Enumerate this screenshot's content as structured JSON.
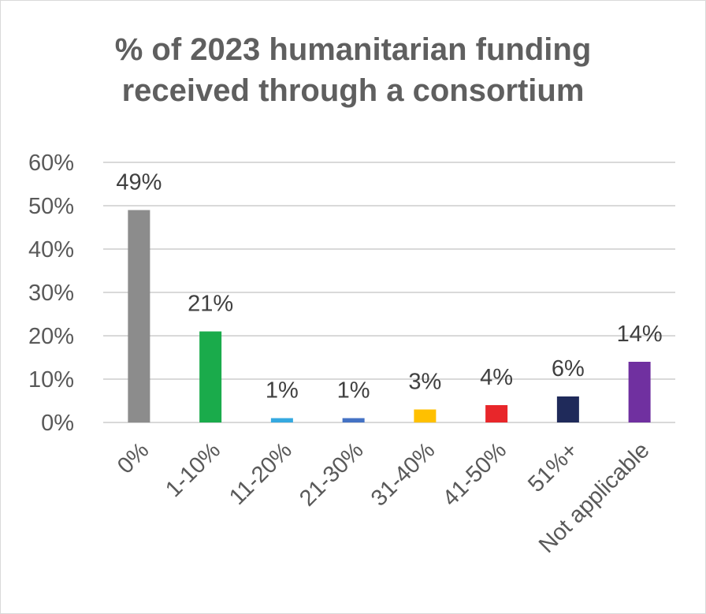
{
  "chart_data": {
    "type": "bar",
    "title_lines": [
      "% of 2023 humanitarian funding",
      "received through a consortium"
    ],
    "categories": [
      "0%",
      "1-10%",
      "11-20%",
      "21-30%",
      "31-40%",
      "41-50%",
      "51%+",
      "Not applicable"
    ],
    "values": [
      49,
      21,
      1,
      1,
      3,
      4,
      6,
      14
    ],
    "data_labels": [
      "49%",
      "21%",
      "1%",
      "1%",
      "3%",
      "4%",
      "6%",
      "14%"
    ],
    "bar_colors": [
      "#8c8c8c",
      "#1aab4b",
      "#35a9e0",
      "#4472c4",
      "#ffc000",
      "#e8262a",
      "#1f2a5a",
      "#7030a0"
    ],
    "y_ticks": [
      0,
      10,
      20,
      30,
      40,
      50,
      60
    ],
    "y_tick_labels": [
      "0%",
      "10%",
      "20%",
      "30%",
      "40%",
      "50%",
      "60%"
    ],
    "ylim": [
      0,
      60
    ],
    "grid": true,
    "legend": "none",
    "xlabel": "",
    "ylabel": ""
  }
}
